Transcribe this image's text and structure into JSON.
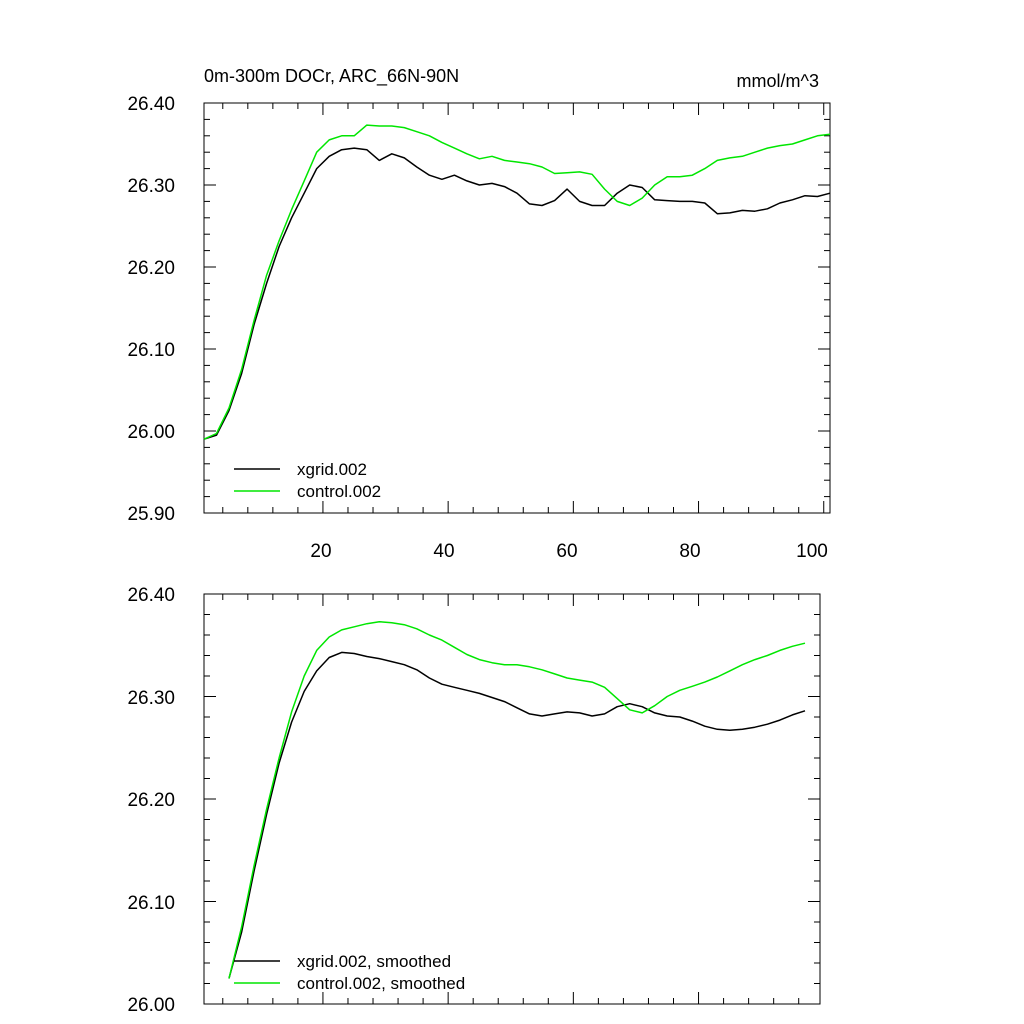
{
  "chart_data": [
    {
      "type": "line",
      "title": "0m-300m DOCr, ARC_66N-90N",
      "units": "mmol/m^3",
      "xlim": [
        1,
        101
      ],
      "ylim": [
        25.9,
        26.4
      ],
      "xticks": [
        20,
        40,
        60,
        80,
        100
      ],
      "xtick_labels": [
        "20",
        "40",
        "60",
        "80",
        "100"
      ],
      "yticks": [
        25.9,
        26.0,
        26.1,
        26.2,
        26.3,
        26.4
      ],
      "ytick_labels": [
        "25.90",
        "26.00",
        "26.10",
        "26.20",
        "26.30",
        "26.40"
      ],
      "legend_position": "bottom-left",
      "series": [
        {
          "name": "xgrid.002",
          "color": "#000000",
          "x": [
            1,
            3,
            5,
            7,
            9,
            11,
            13,
            15,
            17,
            19,
            21,
            23,
            25,
            27,
            29,
            31,
            33,
            35,
            37,
            39,
            41,
            43,
            45,
            47,
            49,
            51,
            53,
            55,
            57,
            59,
            61,
            63,
            65,
            67,
            69,
            71,
            73,
            75,
            77,
            79,
            81,
            83,
            85,
            87,
            89,
            91,
            93,
            95,
            97,
            99,
            101
          ],
          "values": [
            25.99,
            25.995,
            26.025,
            26.07,
            26.13,
            26.18,
            26.225,
            26.26,
            26.29,
            26.32,
            26.335,
            26.343,
            26.345,
            26.343,
            26.33,
            26.338,
            26.333,
            26.322,
            26.312,
            26.307,
            26.312,
            26.305,
            26.3,
            26.302,
            26.298,
            26.29,
            26.277,
            26.275,
            26.281,
            26.295,
            26.28,
            26.275,
            26.275,
            26.29,
            26.3,
            26.297,
            26.282,
            26.281,
            26.28,
            26.28,
            26.278,
            26.265,
            26.266,
            26.269,
            26.268,
            26.271,
            26.278,
            26.282,
            26.287,
            26.286,
            26.29
          ]
        },
        {
          "name": "control.002",
          "color": "#00e600",
          "x": [
            1,
            3,
            5,
            7,
            9,
            11,
            13,
            15,
            17,
            19,
            21,
            23,
            25,
            27,
            29,
            31,
            33,
            35,
            37,
            39,
            41,
            43,
            45,
            47,
            49,
            51,
            53,
            55,
            57,
            59,
            61,
            63,
            65,
            67,
            69,
            71,
            73,
            75,
            77,
            79,
            81,
            83,
            85,
            87,
            89,
            91,
            93,
            95,
            97,
            99,
            101
          ],
          "values": [
            25.99,
            25.997,
            26.028,
            26.075,
            26.135,
            26.19,
            26.232,
            26.27,
            26.305,
            26.34,
            26.355,
            26.36,
            26.36,
            26.373,
            26.372,
            26.372,
            26.37,
            26.365,
            26.36,
            26.352,
            26.345,
            26.338,
            26.332,
            26.335,
            26.33,
            26.328,
            26.326,
            26.322,
            26.314,
            26.315,
            26.316,
            26.313,
            26.295,
            26.28,
            26.275,
            26.284,
            26.3,
            26.31,
            26.31,
            26.312,
            26.32,
            26.33,
            26.333,
            26.335,
            26.34,
            26.345,
            26.348,
            26.35,
            26.355,
            26.36,
            26.362
          ]
        }
      ]
    },
    {
      "type": "line",
      "xlim": [
        1,
        101
      ],
      "ylim": [
        26.0,
        26.4
      ],
      "xticks": [
        20,
        40,
        60,
        80,
        100
      ],
      "yticks": [
        26.0,
        26.1,
        26.2,
        26.3,
        26.4
      ],
      "ytick_labels": [
        "26.00",
        "26.10",
        "26.20",
        "26.30",
        "26.40"
      ],
      "legend_position": "bottom-left",
      "series": [
        {
          "name": "xgrid.002, smoothed",
          "color": "#000000",
          "x": [
            5,
            7,
            9,
            11,
            13,
            15,
            17,
            19,
            21,
            23,
            25,
            27,
            29,
            31,
            33,
            35,
            37,
            39,
            41,
            43,
            45,
            47,
            49,
            51,
            53,
            55,
            57,
            59,
            61,
            63,
            65,
            67,
            69,
            71,
            73,
            75,
            77,
            79,
            81,
            83,
            85,
            87,
            89,
            91,
            93,
            95,
            97
          ],
          "values": [
            26.025,
            26.07,
            26.13,
            26.185,
            26.235,
            26.275,
            26.305,
            26.325,
            26.338,
            26.343,
            26.342,
            26.339,
            26.337,
            26.334,
            26.331,
            26.326,
            26.318,
            26.312,
            26.309,
            26.306,
            26.303,
            26.299,
            26.295,
            26.289,
            26.283,
            26.281,
            26.283,
            26.285,
            26.284,
            26.281,
            26.283,
            26.29,
            26.293,
            26.29,
            26.284,
            26.281,
            26.28,
            26.276,
            26.271,
            26.268,
            26.267,
            26.268,
            26.27,
            26.273,
            26.277,
            26.282,
            26.286
          ]
        },
        {
          "name": "control.002, smoothed",
          "color": "#00e600",
          "x": [
            5,
            7,
            9,
            11,
            13,
            15,
            17,
            19,
            21,
            23,
            25,
            27,
            29,
            31,
            33,
            35,
            37,
            39,
            41,
            43,
            45,
            47,
            49,
            51,
            53,
            55,
            57,
            59,
            61,
            63,
            65,
            67,
            69,
            71,
            73,
            75,
            77,
            79,
            81,
            83,
            85,
            87,
            89,
            91,
            93,
            95,
            97
          ],
          "values": [
            26.025,
            26.075,
            26.135,
            26.19,
            26.24,
            26.285,
            26.32,
            26.345,
            26.358,
            26.365,
            26.368,
            26.371,
            26.373,
            26.372,
            26.37,
            26.366,
            26.36,
            26.355,
            26.348,
            26.341,
            26.336,
            26.333,
            26.331,
            26.331,
            26.329,
            26.326,
            26.322,
            26.318,
            26.316,
            26.314,
            26.309,
            26.298,
            26.287,
            26.284,
            26.291,
            26.3,
            26.306,
            26.31,
            26.314,
            26.319,
            26.325,
            26.331,
            26.336,
            26.34,
            26.345,
            26.349,
            26.352
          ]
        }
      ]
    }
  ]
}
